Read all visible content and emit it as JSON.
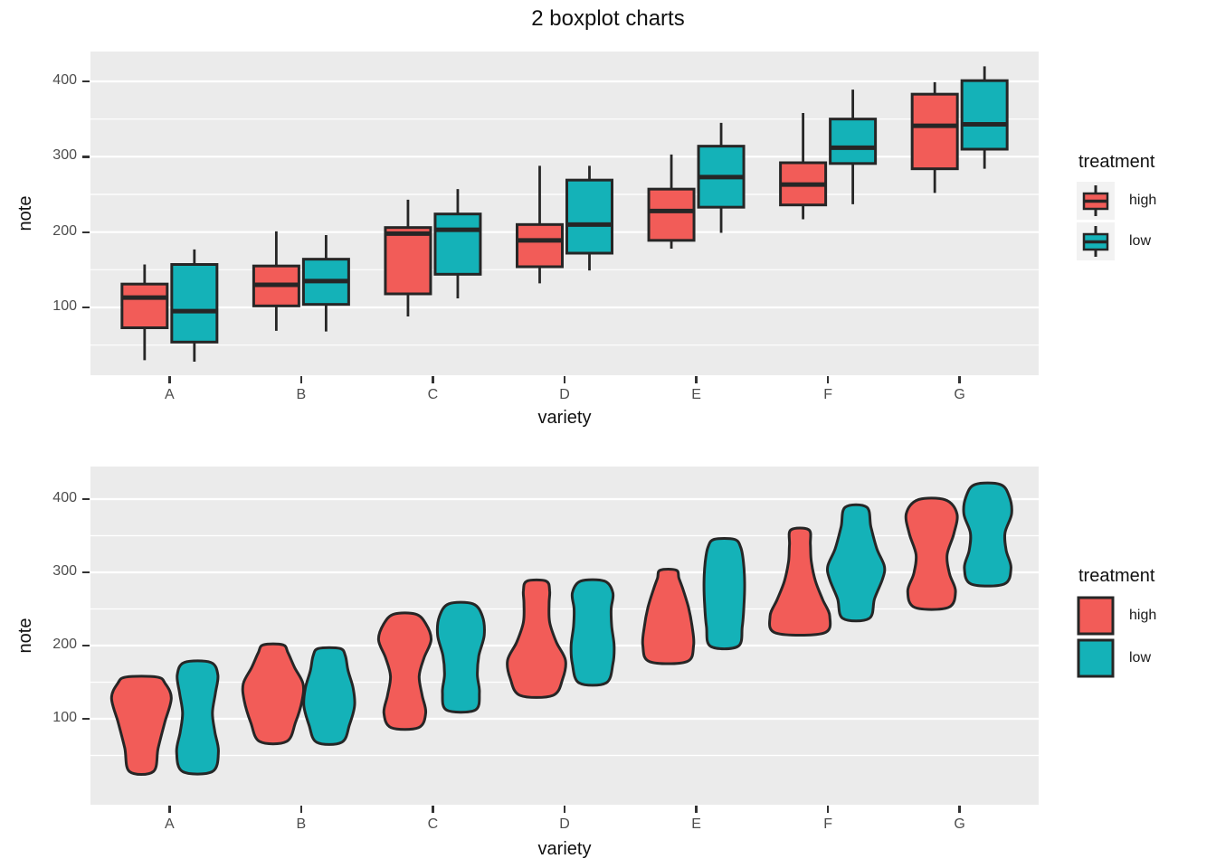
{
  "title": "2 boxplot charts",
  "axes": {
    "x_label": "variety",
    "y_label": "note",
    "x_categories": [
      "A",
      "B",
      "C",
      "D",
      "E",
      "F",
      "G"
    ],
    "y_ticks": [
      "100",
      "200",
      "300",
      "400"
    ]
  },
  "legend": {
    "title": "treatment",
    "entries": [
      {
        "label": "high",
        "color": "#F25C58"
      },
      {
        "label": "low",
        "color": "#14B2B8"
      }
    ]
  },
  "style": {
    "panel_bg": "#EBEBEB",
    "grid_color": "#FFFFFF",
    "outline": "#262626",
    "tick_text": "#4D4D4D",
    "legend_key_bg": "#F2F2F2"
  },
  "chart_data": [
    {
      "type": "boxplot",
      "title": "2 boxplot charts",
      "xlabel": "variety",
      "ylabel": "note",
      "categories": [
        "A",
        "B",
        "C",
        "D",
        "E",
        "F",
        "G"
      ],
      "ylim": [
        10,
        440
      ],
      "yticks": [
        100,
        200,
        300,
        400
      ],
      "grid": true,
      "legend_position": "right",
      "box_format": [
        "whisker_min",
        "q1",
        "median",
        "q3",
        "whisker_max"
      ],
      "series": [
        {
          "name": "high",
          "color": "#F25C58",
          "boxes": [
            [
              30,
              73,
              113,
              131,
              157
            ],
            [
              69,
              102,
              130,
              155,
              201
            ],
            [
              88,
              118,
              198,
              206,
              243
            ],
            [
              132,
              154,
              189,
              210,
              288
            ],
            [
              178,
              189,
              228,
              257,
              303
            ],
            [
              217,
              236,
              263,
              292,
              358
            ],
            [
              252,
              284,
              341,
              383,
              399
            ]
          ]
        },
        {
          "name": "low",
          "color": "#14B2B8",
          "boxes": [
            [
              28,
              54,
              95,
              157,
              177
            ],
            [
              68,
              104,
              135,
              164,
              196
            ],
            [
              112,
              144,
              203,
              224,
              257
            ],
            [
              149,
              172,
              210,
              269,
              288
            ],
            [
              199,
              233,
              273,
              314,
              345
            ],
            [
              237,
              291,
              312,
              350,
              389
            ],
            [
              284,
              310,
              343,
              401,
              420
            ]
          ]
        }
      ]
    },
    {
      "type": "violin",
      "xlabel": "variety",
      "ylabel": "note",
      "categories": [
        "A",
        "B",
        "C",
        "D",
        "E",
        "F",
        "G"
      ],
      "ylim": [
        -17,
        443
      ],
      "yticks": [
        100,
        200,
        300,
        400
      ],
      "grid": true,
      "legend_position": "right",
      "profile_format": "[note_value, relative_halfwidth]",
      "series": [
        {
          "name": "high",
          "color": "#F25C58",
          "profiles": [
            [
              [
                28,
                0.4
              ],
              [
                60,
                0.56
              ],
              [
                95,
                0.78
              ],
              [
                128,
                1.0
              ],
              [
                148,
                0.8
              ],
              [
                157,
                0.52
              ]
            ],
            [
              [
                69,
                0.45
              ],
              [
                95,
                0.75
              ],
              [
                125,
                0.97
              ],
              [
                148,
                1.0
              ],
              [
                170,
                0.72
              ],
              [
                190,
                0.5
              ],
              [
                201,
                0.33
              ]
            ],
            [
              [
                88,
                0.46
              ],
              [
                108,
                0.7
              ],
              [
                132,
                0.58
              ],
              [
                158,
                0.48
              ],
              [
                183,
                0.64
              ],
              [
                208,
                0.88
              ],
              [
                230,
                0.7
              ],
              [
                243,
                0.36
              ]
            ],
            [
              [
                132,
                0.55
              ],
              [
                155,
                0.88
              ],
              [
                180,
                0.97
              ],
              [
                205,
                0.66
              ],
              [
                232,
                0.44
              ],
              [
                258,
                0.42
              ],
              [
                275,
                0.44
              ],
              [
                288,
                0.32
              ]
            ],
            [
              [
                178,
                0.62
              ],
              [
                200,
                0.85
              ],
              [
                226,
                0.8
              ],
              [
                252,
                0.68
              ],
              [
                276,
                0.5
              ],
              [
                292,
                0.36
              ],
              [
                303,
                0.27
              ]
            ],
            [
              [
                217,
                0.8
              ],
              [
                240,
                1.0
              ],
              [
                263,
                0.76
              ],
              [
                288,
                0.52
              ],
              [
                315,
                0.38
              ],
              [
                338,
                0.35
              ],
              [
                358,
                0.3
              ]
            ],
            [
              [
                252,
                0.56
              ],
              [
                274,
                0.8
              ],
              [
                298,
                0.6
              ],
              [
                324,
                0.52
              ],
              [
                352,
                0.74
              ],
              [
                380,
                0.85
              ],
              [
                399,
                0.46
              ]
            ]
          ]
        },
        {
          "name": "low",
          "color": "#14B2B8",
          "profiles": [
            [
              [
                28,
                0.5
              ],
              [
                55,
                0.7
              ],
              [
                82,
                0.58
              ],
              [
                108,
                0.5
              ],
              [
                135,
                0.6
              ],
              [
                160,
                0.68
              ],
              [
                177,
                0.44
              ]
            ],
            [
              [
                68,
                0.42
              ],
              [
                92,
                0.68
              ],
              [
                118,
                0.85
              ],
              [
                142,
                0.8
              ],
              [
                166,
                0.63
              ],
              [
                186,
                0.54
              ],
              [
                196,
                0.36
              ]
            ],
            [
              [
                112,
                0.48
              ],
              [
                136,
                0.62
              ],
              [
                160,
                0.55
              ],
              [
                186,
                0.6
              ],
              [
                214,
                0.78
              ],
              [
                240,
                0.72
              ],
              [
                257,
                0.4
              ]
            ],
            [
              [
                149,
                0.45
              ],
              [
                175,
                0.68
              ],
              [
                200,
                0.72
              ],
              [
                226,
                0.64
              ],
              [
                250,
                0.62
              ],
              [
                272,
                0.68
              ],
              [
                288,
                0.4
              ]
            ],
            [
              [
                199,
                0.46
              ],
              [
                226,
                0.6
              ],
              [
                256,
                0.66
              ],
              [
                286,
                0.68
              ],
              [
                314,
                0.64
              ],
              [
                334,
                0.55
              ],
              [
                345,
                0.34
              ]
            ],
            [
              [
                237,
                0.44
              ],
              [
                264,
                0.62
              ],
              [
                290,
                0.88
              ],
              [
                308,
                0.95
              ],
              [
                332,
                0.7
              ],
              [
                362,
                0.5
              ],
              [
                389,
                0.36
              ]
            ],
            [
              [
                284,
                0.55
              ],
              [
                306,
                0.78
              ],
              [
                330,
                0.62
              ],
              [
                354,
                0.58
              ],
              [
                380,
                0.8
              ],
              [
                404,
                0.72
              ],
              [
                420,
                0.42
              ]
            ]
          ]
        }
      ]
    }
  ]
}
